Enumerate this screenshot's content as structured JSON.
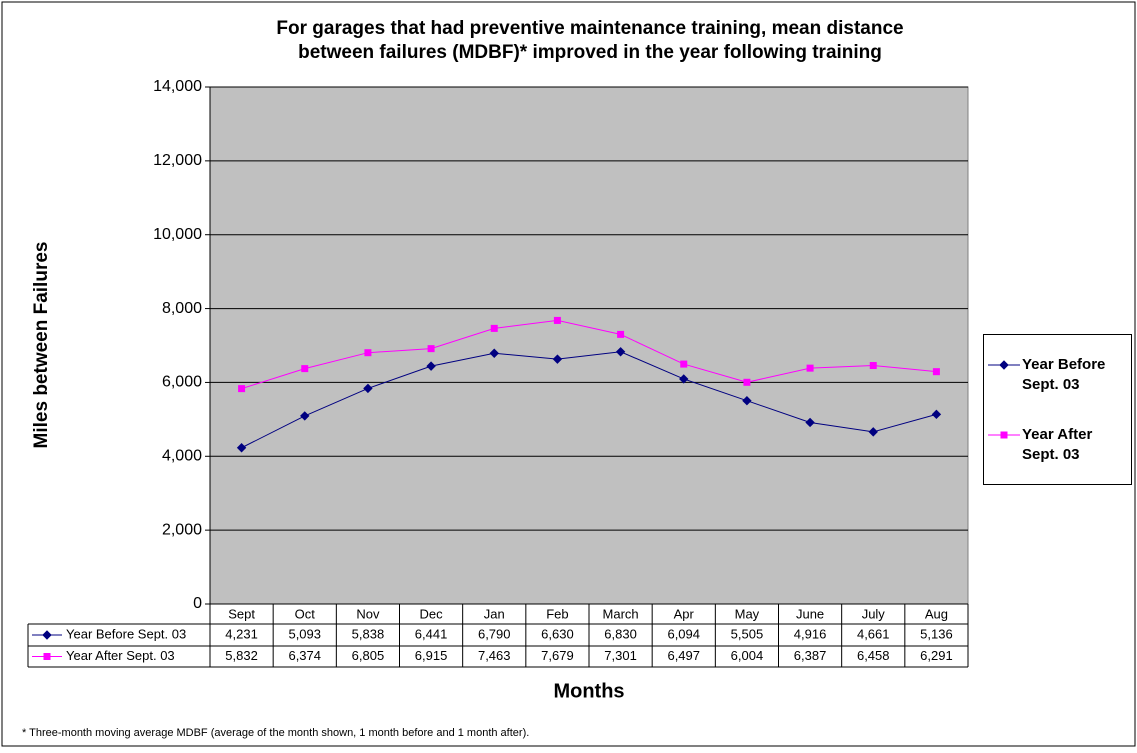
{
  "chart_data": {
    "type": "line",
    "title": "For garages that had preventive maintenance training, mean distance between failures (MDBF)* improved in the year following training",
    "y_label": "Miles between Failures",
    "x_label": "Months",
    "footnote": "* Three-month moving average MDBF (average of the month shown, 1 month before and 1 month after).",
    "categories": [
      "Sept",
      "Oct",
      "Nov",
      "Dec",
      "Jan",
      "Feb",
      "March",
      "Apr",
      "May",
      "June",
      "July",
      "Aug"
    ],
    "series": [
      {
        "name": "Year Before Sept. 03",
        "color": "#000080",
        "marker": "diamond",
        "values": [
          4231,
          5093,
          5838,
          6441,
          6790,
          6630,
          6830,
          6094,
          5505,
          4916,
          4661,
          5136
        ],
        "value_labels": [
          "4,231",
          "5,093",
          "5,838",
          "6,441",
          "6,790",
          "6,630",
          "6,830",
          "6,094",
          "5,505",
          "4,916",
          "4,661",
          "5,136"
        ]
      },
      {
        "name": "Year After Sept. 03",
        "color": "#ff00ff",
        "marker": "square",
        "values": [
          5832,
          6374,
          6805,
          6915,
          7463,
          7679,
          7301,
          6497,
          6004,
          6387,
          6458,
          6291
        ],
        "value_labels": [
          "5,832",
          "6,374",
          "6,805",
          "6,915",
          "7,463",
          "7,679",
          "7,301",
          "6,497",
          "6,004",
          "6,387",
          "6,458",
          "6,291"
        ]
      }
    ],
    "ylim": [
      0,
      14000
    ],
    "yticks": [
      0,
      {
        "value": 2000,
        "label": "2,000"
      },
      {
        "value": 4000,
        "label": "4,000"
      },
      {
        "value": 6000,
        "label": "6,000"
      },
      {
        "value": 8000,
        "label": "8,000"
      },
      {
        "value": 10000,
        "label": "10,000"
      },
      {
        "value": 12000,
        "label": "12,000"
      },
      {
        "value": 14000,
        "label": "14,000"
      }
    ],
    "grid": true,
    "plot_background": "#c0c0c0",
    "legend": "right"
  }
}
